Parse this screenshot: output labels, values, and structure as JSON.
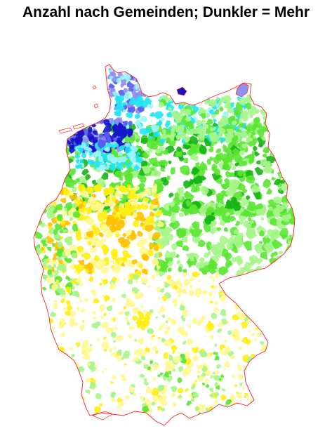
{
  "title": "Anzahl nach Gemeinden; Dunkler = Mehr",
  "map": {
    "border_color": "#ff2020",
    "palette": {
      "navy": "#1414c8",
      "blue": "#5a5af0",
      "lavender": "#9090f0",
      "cyan": "#1ee6f0",
      "lightcyan": "#9af4f8",
      "darkgreen": "#16b416",
      "green": "#5ae632",
      "lightgreen": "#a6f58a",
      "orange": "#ffc000",
      "yellow": "#ffee10",
      "lightyellow": "#fff890"
    }
  }
}
